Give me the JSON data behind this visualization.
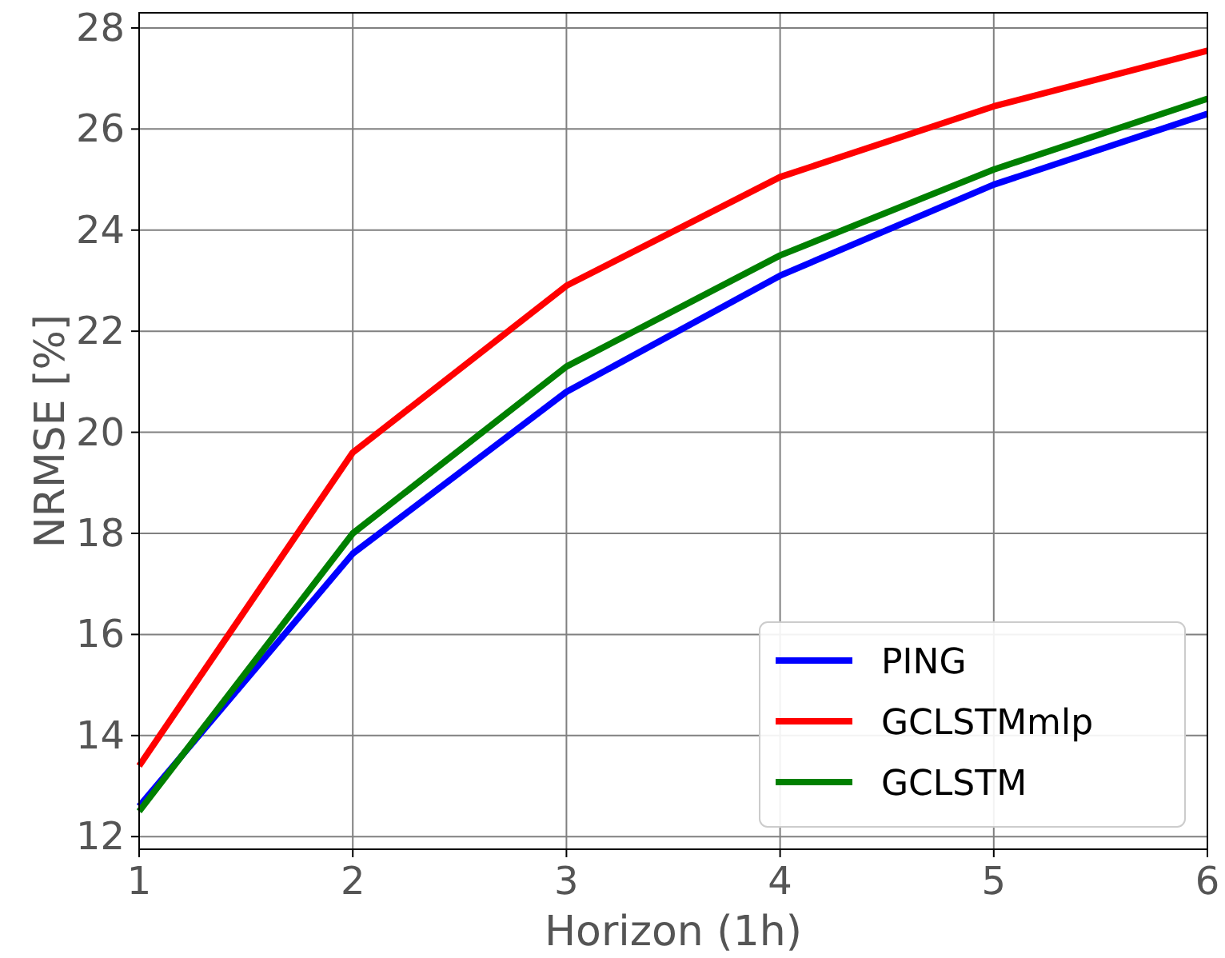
{
  "chart_data": {
    "type": "line",
    "xlabel": "Horizon (1h)",
    "ylabel": "NRMSE [%]",
    "x": [
      1,
      2,
      3,
      4,
      5,
      6
    ],
    "series": [
      {
        "name": "PING",
        "color": "#0000ff",
        "values": [
          12.6,
          17.6,
          20.8,
          23.1,
          24.9,
          26.3
        ]
      },
      {
        "name": "GCLSTMmlp",
        "color": "#ff0000",
        "values": [
          13.4,
          19.6,
          22.9,
          25.05,
          26.45,
          27.55
        ]
      },
      {
        "name": "GCLSTM",
        "color": "#008000",
        "values": [
          12.5,
          18.0,
          21.3,
          23.5,
          25.2,
          26.6
        ]
      }
    ],
    "xlim": [
      1,
      6
    ],
    "ylim": [
      11.75,
      28.3
    ],
    "xticks": [
      1,
      2,
      3,
      4,
      5,
      6
    ],
    "yticks": [
      12,
      14,
      16,
      18,
      20,
      22,
      24,
      26,
      28
    ],
    "grid": true,
    "legend": "bottom right",
    "marker": "none",
    "line_style": "solid"
  }
}
